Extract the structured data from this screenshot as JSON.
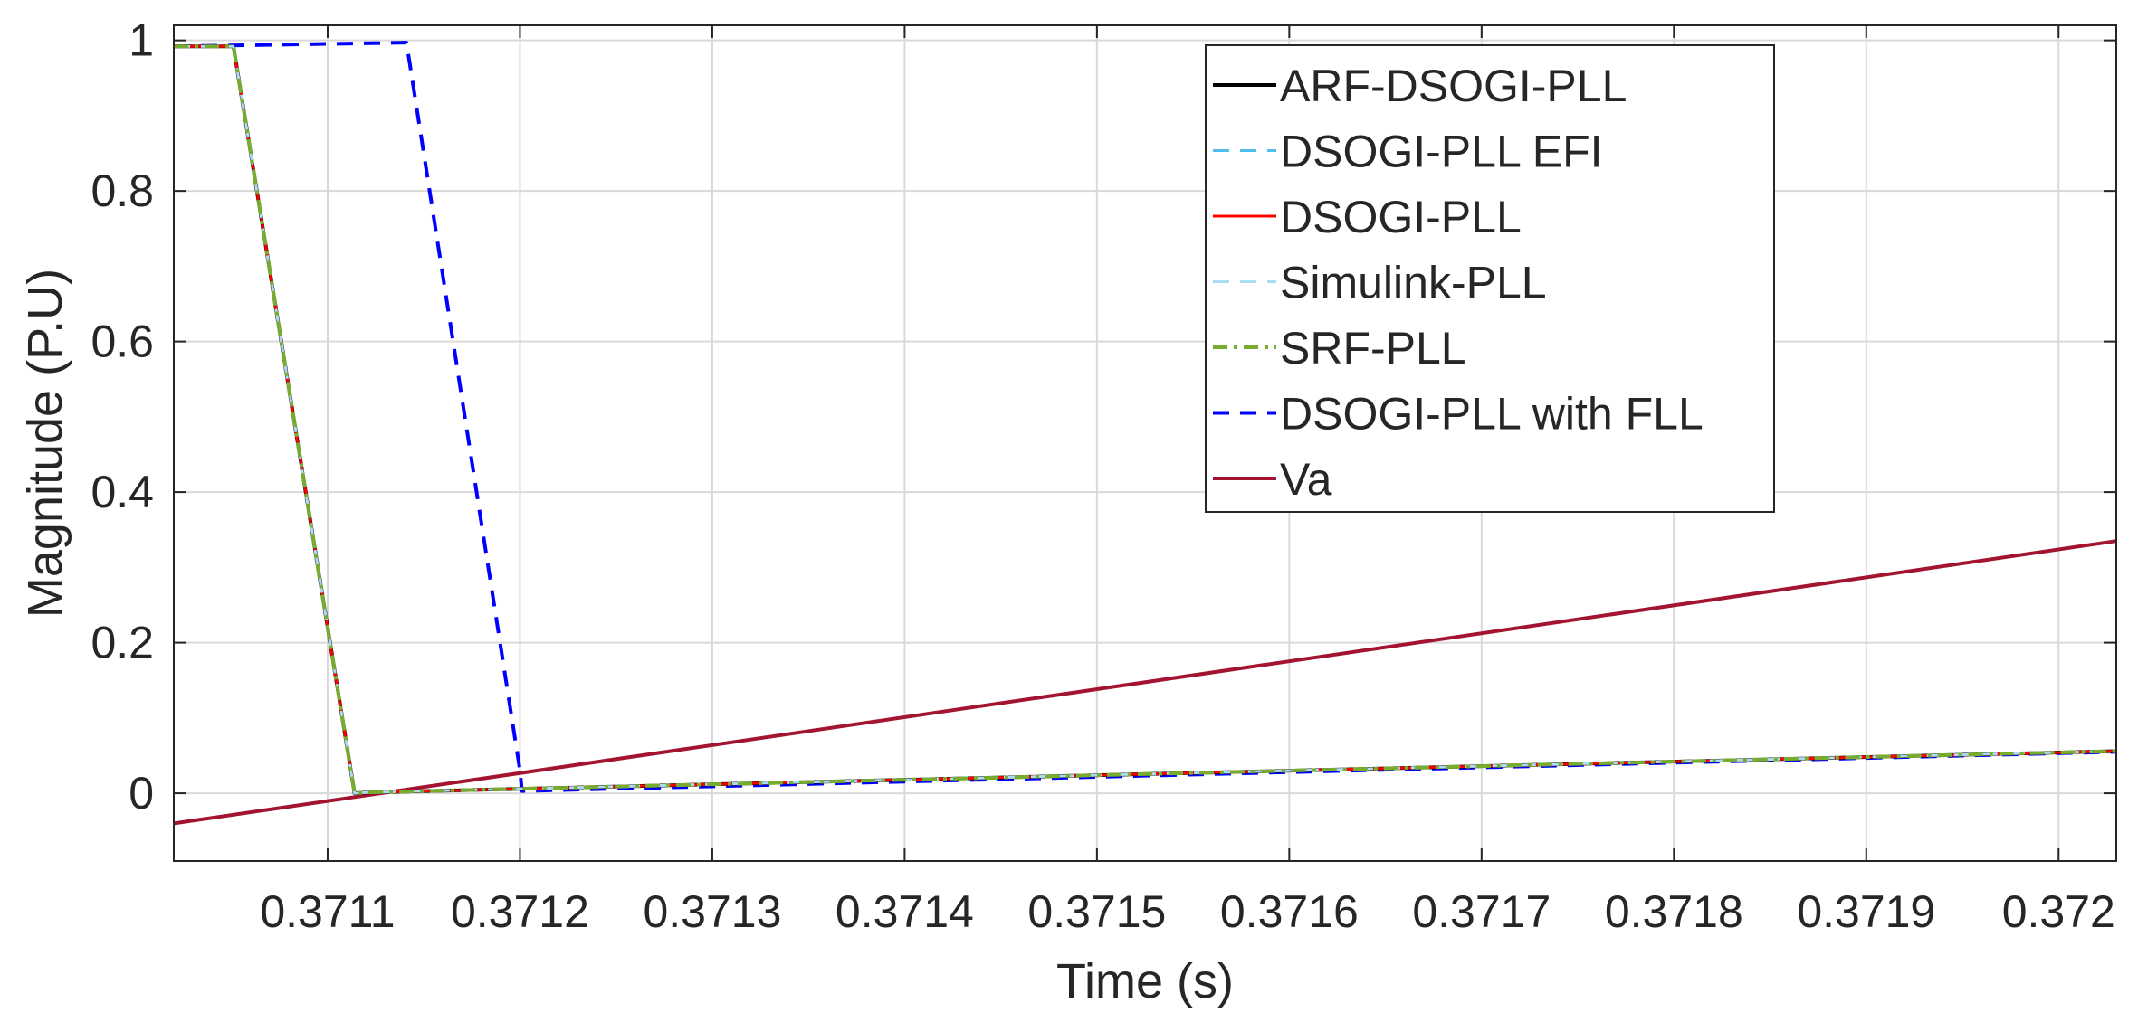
{
  "chart_data": {
    "type": "line",
    "title": "",
    "xlabel": "Time (s)",
    "ylabel": "Magnitude (P.U)",
    "xlim": [
      0.37102,
      0.37203
    ],
    "ylim": [
      -0.09,
      1.02
    ],
    "x_ticks": [
      0.3711,
      0.3712,
      0.3713,
      0.3714,
      0.3715,
      0.3716,
      0.3717,
      0.3718,
      0.3719,
      0.372
    ],
    "x_tick_labels": [
      "0.3711",
      "0.3712",
      "0.3713",
      "0.3714",
      "0.3715",
      "0.3716",
      "0.3717",
      "0.3718",
      "0.3719",
      "0.372"
    ],
    "y_ticks": [
      0,
      0.2,
      0.4,
      0.6,
      0.8,
      1
    ],
    "y_tick_labels": [
      "0",
      "0.2",
      "0.4",
      "0.6",
      "0.8",
      "1"
    ],
    "grid": true,
    "legend_position": "top-center-right",
    "series": [
      {
        "name": "ARF-DSOGI-PLL",
        "color": "#000000",
        "dash": "solid",
        "width": 4,
        "x": [
          0.37102,
          0.371051,
          0.371114,
          0.37112,
          0.37203
        ],
        "y": [
          0.992,
          0.992,
          0.0,
          0.001,
          0.056
        ]
      },
      {
        "name": "DSOGI-PLL EFI",
        "color": "#4DBEEE",
        "dash": "dashed",
        "width": 3,
        "x": [
          0.37102,
          0.371051,
          0.371114,
          0.37112,
          0.37203
        ],
        "y": [
          0.992,
          0.992,
          0.0,
          0.001,
          0.056
        ]
      },
      {
        "name": "DSOGI-PLL",
        "color": "#FF0000",
        "dash": "solid",
        "width": 3,
        "x": [
          0.37102,
          0.371051,
          0.371114,
          0.37112,
          0.37203
        ],
        "y": [
          0.992,
          0.992,
          0.0,
          0.001,
          0.056
        ]
      },
      {
        "name": "Simulink-PLL",
        "color": "#A8DCF0",
        "dash": "dashed",
        "width": 3,
        "x": [
          0.37102,
          0.371051,
          0.371114,
          0.37112,
          0.37203
        ],
        "y": [
          0.992,
          0.992,
          0.0,
          0.001,
          0.056
        ]
      },
      {
        "name": "SRF-PLL",
        "color": "#77AC30",
        "dash": "dashdot",
        "width": 4,
        "x": [
          0.37102,
          0.371051,
          0.371114,
          0.37112,
          0.37203
        ],
        "y": [
          0.992,
          0.992,
          0.0,
          0.001,
          0.056
        ]
      },
      {
        "name": "DSOGI-PLL with FLL",
        "color": "#0000FF",
        "dash": "dashed",
        "width": 4,
        "x": [
          0.37102,
          0.371141,
          0.3712,
          0.371201,
          0.37203
        ],
        "y": [
          0.992,
          0.997,
          0.03,
          0.003,
          0.055
        ]
      },
      {
        "name": "Va",
        "color": "#A2142F",
        "dash": "solid",
        "width": 4,
        "x": [
          0.37102,
          0.37203
        ],
        "y": [
          -0.04,
          0.335
        ]
      }
    ]
  }
}
